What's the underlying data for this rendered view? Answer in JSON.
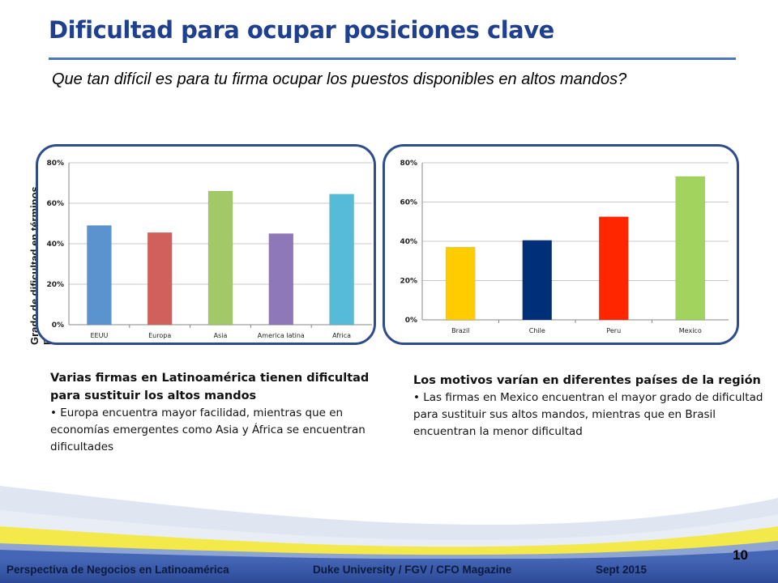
{
  "slide": {
    "title": "Dificultad para ocupar posiciones clave",
    "question": "Que tan difícil es para tu firma ocupar los puestos disponibles en altos mandos?",
    "ylabel": "Grado de dificultad en términos porcentuales",
    "page_number": "10"
  },
  "left_text": {
    "heading": "Varias firmas en Latinoamérica tienen dificultad para sustituir los altos mandos",
    "bullet": "Europa encuentra mayor facilidad, mientras que en economías emergentes como Asia y África se encuentran dificultades"
  },
  "right_text": {
    "heading": "Los motivos varían en diferentes países de la región",
    "bullet": "Las firmas en Mexico encuentran el mayor grado de dificultad para sustituir  sus altos mandos, mientras que en Brasil encuentran la menor dificultad"
  },
  "footer": {
    "left": "Perspectiva de Negocios en Latinoamérica",
    "center": "Duke University / FGV / CFO Magazine",
    "right": "Sept 2015"
  },
  "colors": {
    "title": "#1f3f8f",
    "frame": "#2e4d8a",
    "footer_bar": "#2d4a98",
    "footer_yellow": "#f4e94a"
  },
  "chart_data": [
    {
      "type": "bar",
      "categories": [
        "EEUU",
        "Europa",
        "Asia",
        "America latina",
        "Africa"
      ],
      "values": [
        49,
        45.5,
        66,
        45,
        64.5
      ],
      "colors": [
        "#5b93cf",
        "#d1605c",
        "#a2c868",
        "#8f78b8",
        "#55bbd6"
      ],
      "yticks": [
        "0%",
        "20%",
        "40%",
        "60%",
        "80%"
      ],
      "ylim": [
        0,
        80
      ],
      "grid": true
    },
    {
      "type": "bar",
      "categories": [
        "Brazil",
        "Chile",
        "Peru",
        "Mexico"
      ],
      "values": [
        37,
        40.5,
        52.5,
        73
      ],
      "colors": [
        "#ffcc00",
        "#002f7a",
        "#ff2600",
        "#a2d35e"
      ],
      "yticks": [
        "0%",
        "20%",
        "40%",
        "60%",
        "80%"
      ],
      "ylim": [
        0,
        80
      ],
      "grid": true
    }
  ]
}
